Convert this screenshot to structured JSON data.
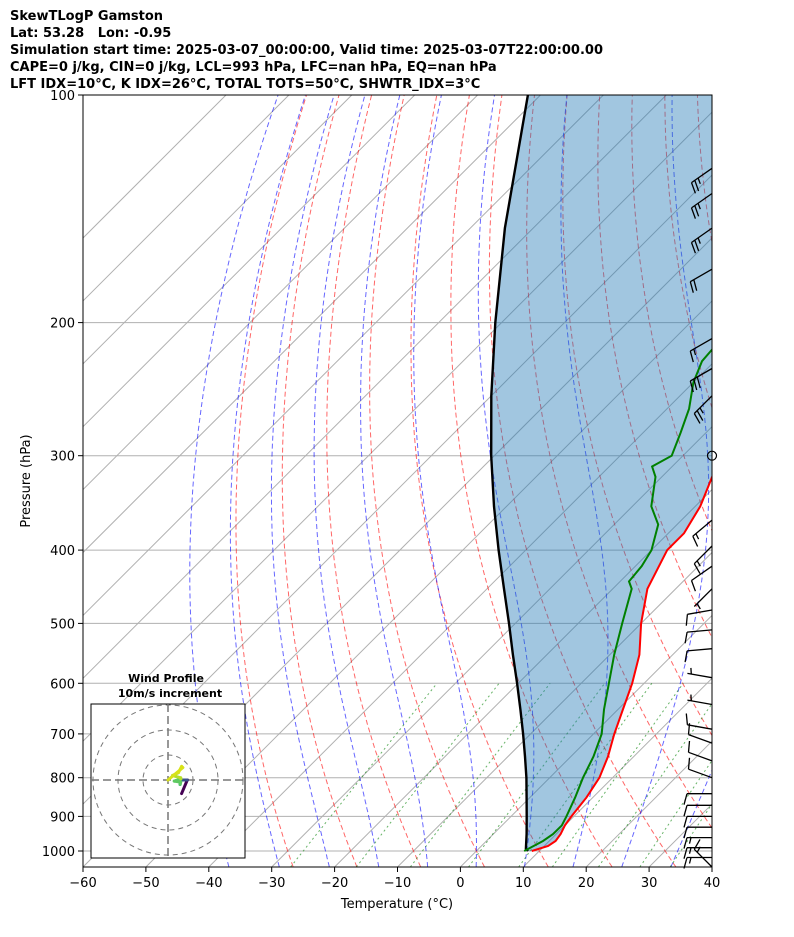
{
  "header": {
    "line1": "SkewTLogP Gamston",
    "line2": "Lat: 53.28   Lon: -0.95",
    "line3": "Simulation start time: 2025-03-07_00:00:00, Valid time: 2025-03-07T22:00:00.00",
    "line4": "CAPE=0 j/kg, CIN=0 j/kg, LCL=993 hPa, LFC=nan hPa, EQ=nan hPa",
    "line5": "LFT IDX=10$^\\circ$C, K IDX=26$^\\circ$C, TOTAL TOTS=50$^\\circ$C, SHWTR_IDX=3$^\\circ$C"
  },
  "chart_data": {
    "type": "line",
    "title": "SkewTLogP Gamston",
    "xlabel": "Temperature ($^\\circ$C)",
    "ylabel": "Pressure (hPa)",
    "xlim": [
      -60,
      40
    ],
    "ylim": [
      1050,
      100
    ],
    "y_scale": "log",
    "x_ticks": [
      -60,
      -50,
      -40,
      -30,
      -20,
      -10,
      0,
      10,
      20,
      30,
      40
    ],
    "x_tick_labels": [
      "−60",
      "−50",
      "−40",
      "−30",
      "−20",
      "−10",
      "0",
      "10",
      "20",
      "30",
      "40"
    ],
    "y_ticks": [
      1000,
      900,
      800,
      700,
      600,
      500,
      400,
      300,
      200,
      100
    ],
    "y_tick_labels": [
      "1000",
      "900",
      "800",
      "700",
      "600",
      "500",
      "400",
      "300",
      "200",
      "100"
    ],
    "grid": true,
    "series": [
      {
        "role": "temperature",
        "color": "#ff0000",
        "p": [
          1000,
          985,
          970,
          950,
          925,
          900,
          850,
          800,
          750,
          700,
          650,
          600,
          550,
          500,
          450,
          400,
          380,
          350,
          320,
          300,
          280,
          260,
          240,
          228,
          215,
          205,
          195,
          185,
          175,
          160,
          145,
          130,
          120,
          110,
          100
        ],
        "t": [
          8.8,
          10.6,
          11.0,
          10.7,
          10.0,
          9.6,
          9.0,
          7.9,
          5.9,
          3.3,
          0.8,
          -1.9,
          -5.3,
          -10.0,
          -14.5,
          -17.5,
          -17.5,
          -19.2,
          -22.0,
          -23.5,
          -26.0,
          -28.5,
          -31.0,
          -32.7,
          -33.5,
          -33.8,
          -34.0,
          -34.0,
          -34.5,
          -37.0,
          -40.0,
          -43.0,
          -45.0,
          -47.0,
          -48.5
        ]
      },
      {
        "role": "dewpoint",
        "color": "#008000",
        "p": [
          1000,
          985,
          970,
          950,
          925,
          900,
          850,
          800,
          750,
          700,
          650,
          600,
          550,
          500,
          450,
          440,
          420,
          400,
          370,
          350,
          320,
          310,
          300,
          280,
          260,
          240,
          225,
          210,
          195,
          180,
          165,
          160,
          140,
          120,
          100
        ],
        "t": [
          7.6,
          8.3,
          9.0,
          9.5,
          9.5,
          8.8,
          7.2,
          5.3,
          3.6,
          1.3,
          -2.2,
          -5.6,
          -9.3,
          -13.0,
          -17.0,
          -18.6,
          -19.0,
          -20.0,
          -23.0,
          -27.0,
          -31.0,
          -33.2,
          -31.8,
          -34.0,
          -36.5,
          -40.0,
          -42.0,
          -42.5,
          -44.0,
          -45.0,
          -47.0,
          -50.0,
          -52.0,
          -54.0,
          -56.0
        ]
      },
      {
        "role": "parcel",
        "color": "#000000",
        "p": [
          1000,
          993,
          950,
          900,
          850,
          800,
          750,
          700,
          650,
          600,
          550,
          500,
          450,
          400,
          350,
          300,
          250,
          200,
          150,
          100
        ],
        "t": [
          8.2,
          7.5,
          5.3,
          2.5,
          -0.5,
          -3.7,
          -7.3,
          -11.2,
          -15.5,
          -20.2,
          -25.4,
          -31.0,
          -37.3,
          -44.3,
          -52.0,
          -60.5,
          -70.0,
          -81.0,
          -94.5,
          -112.0
        ]
      }
    ],
    "wind_barbs": {
      "p": [
        1050,
        1020,
        990,
        960,
        930,
        900,
        870,
        840,
        800,
        760,
        720,
        690,
        640,
        590,
        540,
        510,
        480,
        450,
        420,
        395,
        365,
        300,
        250,
        230,
        210,
        170,
        150,
        135,
        125
      ],
      "speed_kt": [
        15,
        15,
        15,
        15,
        10,
        10,
        10,
        10,
        10,
        10,
        10,
        10,
        5,
        5,
        10,
        10,
        10,
        5,
        10,
        15,
        15,
        0,
        25,
        30,
        15,
        20,
        25,
        25,
        25
      ],
      "dir_deg": [
        315,
        270,
        270,
        270,
        270,
        270,
        270,
        270,
        290,
        290,
        290,
        280,
        280,
        280,
        265,
        265,
        260,
        225,
        235,
        225,
        230,
        0,
        225,
        240,
        240,
        240,
        235,
        235,
        235
      ]
    }
  },
  "hodograph": {
    "title": "Wind Profile",
    "subtitle": "10m/s increment"
  }
}
